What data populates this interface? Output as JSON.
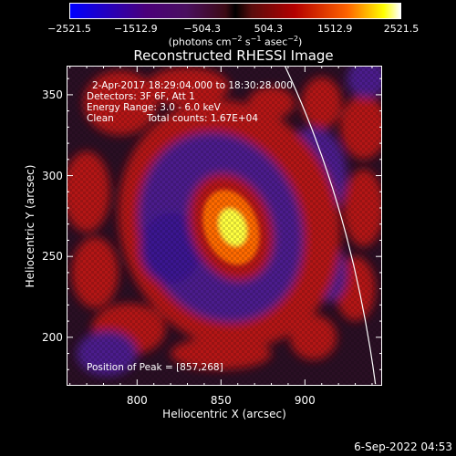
{
  "colorbar": {
    "ticks": [
      "−2521.5",
      "−1512.9",
      "−504.3",
      "504.3",
      "1512.9",
      "2521.5"
    ],
    "tick_values": [
      -2521.5,
      -1512.9,
      -504.3,
      504.3,
      1512.9,
      2521.5
    ],
    "range": [
      -2521.5,
      2521.5
    ],
    "units": {
      "prefix": "(photons cm",
      "exp1": "−2",
      "mid1": " s",
      "exp2": "−1",
      "mid2": " asec",
      "exp3": "−2",
      "suffix": ")"
    }
  },
  "chart_data": {
    "type": "heatmap",
    "title": "Reconstructed RHESSI Image",
    "xlabel": "Heliocentric X (arcsec)",
    "ylabel": "Heliocentric Y (arcsec)",
    "xlim": [
      758,
      946
    ],
    "ylim": [
      170,
      368
    ],
    "xticks": [
      800,
      850,
      900
    ],
    "yticks": [
      200,
      250,
      300,
      350
    ],
    "peak": [
      857,
      268
    ],
    "annotations": {
      "time_range": "2-Apr-2017 18:29:04.000 to 18:30:28.000",
      "detectors": "Detectors: 3F 6F, Att 1",
      "energy": "Energy Range: 3.0 - 6.0 keV",
      "algorithm": "Clean",
      "counts": "Total counts: 1.67E+04",
      "peak_label": "Position of Peak = [857,268]"
    }
  },
  "footer": {
    "timestamp": "6-Sep-2022 04:53"
  },
  "colors": {
    "peak_core": "#ffff40",
    "bright": "#ff6a00",
    "ring": "#b41414",
    "negative": "#4b1e8c",
    "limb": "#ffffff"
  }
}
